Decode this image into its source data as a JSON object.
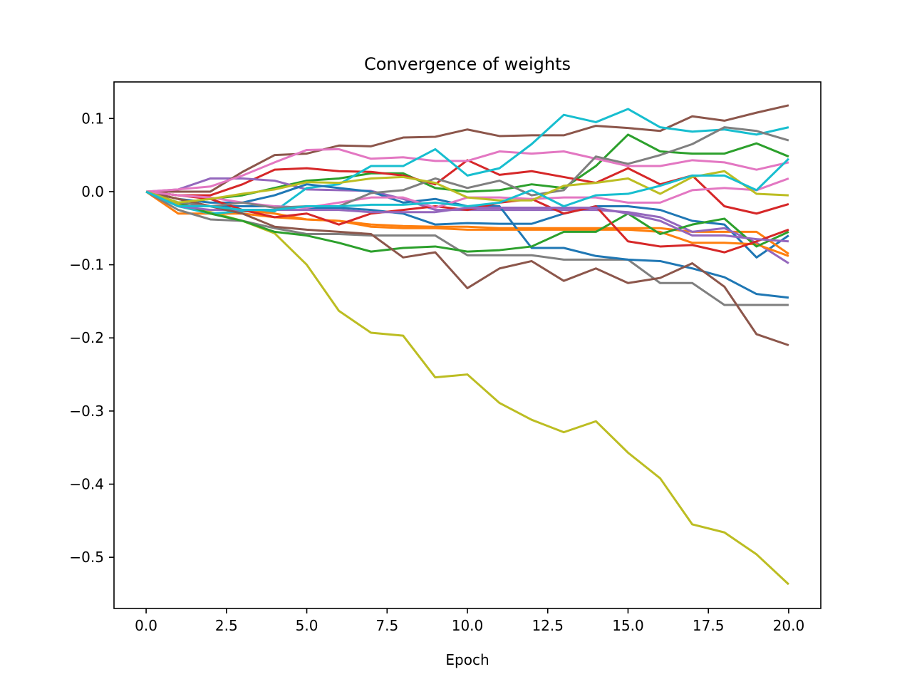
{
  "chart_data": {
    "type": "line",
    "title": "Convergence of weights",
    "xlabel": "Epoch",
    "ylabel": "",
    "xlim": [
      -1.0,
      21.0
    ],
    "ylim": [
      -0.57,
      0.15
    ],
    "xticks": [
      0.0,
      2.5,
      5.0,
      7.5,
      10.0,
      12.5,
      15.0,
      17.5,
      20.0
    ],
    "xtick_labels": [
      "0.0",
      "2.5",
      "5.0",
      "7.5",
      "10.0",
      "12.5",
      "15.0",
      "17.5",
      "20.0"
    ],
    "yticks": [
      0.1,
      0.0,
      -0.1,
      -0.2,
      -0.3,
      -0.4,
      -0.5
    ],
    "ytick_labels": [
      "0.1",
      "0.0",
      "−0.1",
      "−0.2",
      "−0.3",
      "−0.4",
      "−0.5"
    ],
    "grid": false,
    "x": [
      0,
      1,
      2,
      3,
      4,
      5,
      6,
      7,
      8,
      9,
      10,
      11,
      12,
      13,
      14,
      15,
      16,
      17,
      18,
      19,
      20
    ],
    "series": [
      {
        "color": "#1f77b4",
        "values": [
          0,
          -0.01,
          -0.02,
          -0.02,
          -0.02,
          -0.022,
          -0.022,
          -0.025,
          -0.03,
          -0.045,
          -0.043,
          -0.044,
          -0.044,
          -0.03,
          -0.02,
          -0.02,
          -0.025,
          -0.04,
          -0.045,
          -0.09,
          -0.06
        ]
      },
      {
        "color": "#ff7f0e",
        "values": [
          0,
          -0.03,
          -0.03,
          -0.03,
          -0.035,
          -0.038,
          -0.04,
          -0.045,
          -0.047,
          -0.048,
          -0.048,
          -0.05,
          -0.05,
          -0.05,
          -0.05,
          -0.05,
          -0.05,
          -0.055,
          -0.055,
          -0.055,
          -0.085
        ]
      },
      {
        "color": "#2ca02c",
        "values": [
          0,
          -0.015,
          -0.01,
          -0.005,
          0.005,
          0.015,
          0.018,
          0.025,
          0.025,
          0.005,
          0,
          0.002,
          0.01,
          0.005,
          0.035,
          0.078,
          0.055,
          0.052,
          0.052,
          0.066,
          0.048
        ]
      },
      {
        "color": "#d62728",
        "values": [
          0,
          -0.005,
          -0.005,
          0.01,
          0.03,
          0.032,
          0.028,
          0.027,
          0.022,
          0.01,
          0.043,
          0.023,
          0.028,
          0.02,
          0.012,
          0.032,
          0.01,
          0.022,
          -0.02,
          -0.03,
          -0.017
        ]
      },
      {
        "color": "#9467bd",
        "values": [
          0,
          0.003,
          0.018,
          0.018,
          0.015,
          0.003,
          0.002,
          0.001,
          -0.01,
          -0.025,
          -0.025,
          -0.025,
          -0.025,
          -0.025,
          -0.025,
          -0.028,
          -0.035,
          -0.055,
          -0.05,
          -0.07,
          -0.098
        ]
      },
      {
        "color": "#8c564b",
        "values": [
          0,
          0.0,
          0.0,
          0.027,
          0.05,
          0.052,
          0.063,
          0.062,
          0.074,
          0.075,
          0.085,
          0.076,
          0.077,
          0.077,
          0.09,
          0.087,
          0.083,
          0.103,
          0.097,
          0.108,
          0.118
        ]
      },
      {
        "color": "#e377c2",
        "values": [
          0,
          0.003,
          0.007,
          0.022,
          0.04,
          0.057,
          0.058,
          0.045,
          0.047,
          0.042,
          0.042,
          0.055,
          0.052,
          0.055,
          0.045,
          0.035,
          0.035,
          0.043,
          0.04,
          0.03,
          0.04
        ]
      },
      {
        "color": "#7f7f7f",
        "values": [
          0,
          -0.025,
          -0.038,
          -0.04,
          -0.05,
          -0.058,
          -0.058,
          -0.06,
          -0.06,
          -0.06,
          -0.087,
          -0.087,
          -0.087,
          -0.093,
          -0.093,
          -0.093,
          -0.125,
          -0.125,
          -0.155,
          -0.155,
          -0.155
        ]
      },
      {
        "color": "#bcbd22",
        "values": [
          0,
          -0.018,
          -0.028,
          -0.04,
          -0.057,
          -0.1,
          -0.163,
          -0.193,
          -0.197,
          -0.254,
          -0.25,
          -0.289,
          -0.312,
          -0.329,
          -0.314,
          -0.357,
          -0.392,
          -0.455,
          -0.466,
          -0.496,
          -0.537
        ]
      },
      {
        "color": "#17becf",
        "values": [
          0,
          -0.02,
          -0.03,
          -0.027,
          -0.027,
          0.005,
          0.01,
          0.035,
          0.035,
          0.058,
          0.022,
          0.032,
          0.065,
          0.105,
          0.095,
          0.113,
          0.088,
          0.082,
          0.085,
          0.078,
          0.088
        ]
      },
      {
        "color": "#1f77b4",
        "values": [
          0,
          -0.01,
          -0.015,
          -0.015,
          -0.005,
          0.01,
          0.005,
          0.0,
          -0.015,
          -0.01,
          -0.02,
          -0.02,
          -0.077,
          -0.077,
          -0.088,
          -0.093,
          -0.095,
          -0.105,
          -0.117,
          -0.14,
          -0.145
        ]
      },
      {
        "color": "#ff7f0e",
        "values": [
          0,
          -0.01,
          -0.02,
          -0.025,
          -0.03,
          -0.038,
          -0.04,
          -0.048,
          -0.05,
          -0.05,
          -0.052,
          -0.052,
          -0.052,
          -0.052,
          -0.052,
          -0.052,
          -0.055,
          -0.07,
          -0.07,
          -0.072,
          -0.088
        ]
      },
      {
        "color": "#2ca02c",
        "values": [
          0,
          -0.015,
          -0.03,
          -0.04,
          -0.055,
          -0.06,
          -0.07,
          -0.082,
          -0.077,
          -0.075,
          -0.082,
          -0.08,
          -0.075,
          -0.055,
          -0.055,
          -0.03,
          -0.058,
          -0.045,
          -0.037,
          -0.075,
          -0.055
        ]
      },
      {
        "color": "#d62728",
        "values": [
          0,
          -0.005,
          -0.01,
          -0.025,
          -0.035,
          -0.03,
          -0.045,
          -0.03,
          -0.025,
          -0.02,
          -0.025,
          -0.015,
          -0.01,
          -0.03,
          -0.02,
          -0.068,
          -0.075,
          -0.073,
          -0.083,
          -0.068,
          -0.052
        ]
      },
      {
        "color": "#9467bd",
        "values": [
          0,
          -0.02,
          -0.025,
          -0.025,
          -0.025,
          -0.025,
          -0.025,
          -0.028,
          -0.028,
          -0.028,
          -0.022,
          -0.022,
          -0.022,
          -0.022,
          -0.022,
          -0.03,
          -0.04,
          -0.06,
          -0.06,
          -0.065,
          -0.068
        ]
      },
      {
        "color": "#8c564b",
        "values": [
          0,
          -0.01,
          -0.02,
          -0.03,
          -0.048,
          -0.052,
          -0.055,
          -0.058,
          -0.09,
          -0.083,
          -0.132,
          -0.105,
          -0.095,
          -0.122,
          -0.105,
          -0.125,
          -0.118,
          -0.098,
          -0.13,
          -0.195,
          -0.21
        ]
      },
      {
        "color": "#e377c2",
        "values": [
          0,
          -0.005,
          -0.008,
          -0.015,
          -0.02,
          -0.022,
          -0.015,
          -0.008,
          -0.008,
          -0.022,
          -0.008,
          -0.008,
          -0.01,
          -0.008,
          -0.008,
          -0.015,
          -0.015,
          0.002,
          0.005,
          0.002,
          0.018
        ]
      },
      {
        "color": "#7f7f7f",
        "values": [
          0,
          -0.015,
          -0.02,
          -0.015,
          -0.022,
          -0.02,
          -0.02,
          -0.002,
          0.002,
          0.018,
          0.005,
          0.015,
          -0.005,
          0.002,
          0.048,
          0.038,
          0.05,
          0.065,
          0.088,
          0.083,
          0.07
        ]
      },
      {
        "color": "#bcbd22",
        "values": [
          0,
          -0.015,
          -0.01,
          -0.003,
          0.003,
          0.013,
          0.012,
          0.018,
          0.02,
          0.012,
          -0.008,
          -0.012,
          -0.012,
          0.008,
          0.012,
          0.018,
          -0.003,
          0.02,
          0.028,
          -0.003,
          -0.005
        ]
      },
      {
        "color": "#17becf",
        "values": [
          0,
          -0.02,
          -0.02,
          -0.025,
          -0.025,
          -0.02,
          -0.02,
          -0.018,
          -0.018,
          -0.015,
          -0.02,
          -0.015,
          0.002,
          -0.02,
          -0.005,
          -0.003,
          0.008,
          0.022,
          0.022,
          0.002,
          0.045
        ]
      }
    ]
  }
}
